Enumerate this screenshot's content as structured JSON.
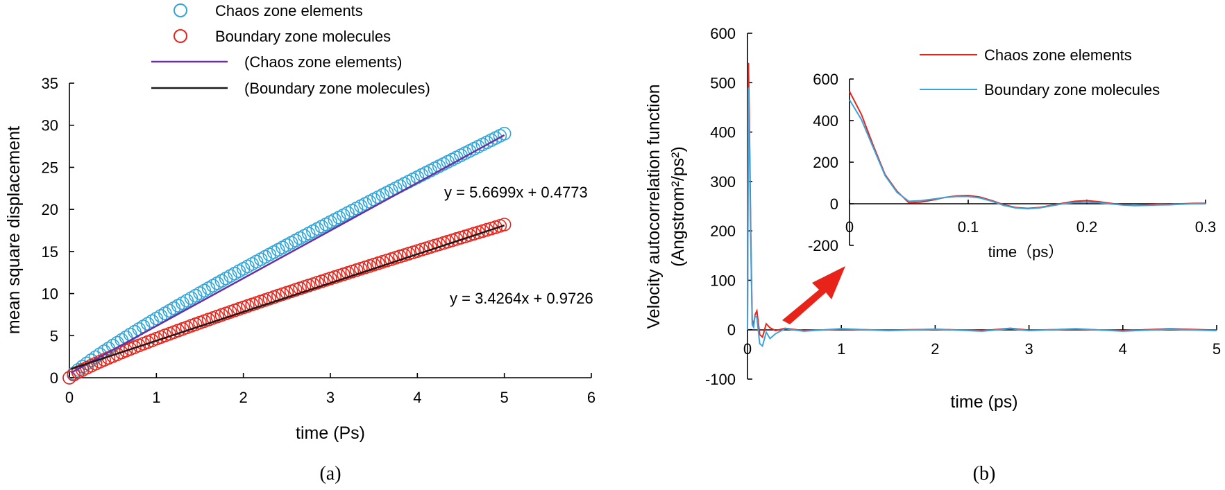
{
  "chart_data": [
    {
      "type": "scatter",
      "panel": "(a)",
      "xlabel": "time (Ps)",
      "ylabel": "mean square displacement",
      "xlim": [
        0,
        6
      ],
      "ylim": [
        0,
        35
      ],
      "xticks": [
        "0",
        "1",
        "2",
        "3",
        "4",
        "5",
        "6"
      ],
      "yticks": [
        "0",
        "5",
        "10",
        "15",
        "20",
        "25",
        "30",
        "35"
      ],
      "legend": {
        "placement": "top",
        "entries": [
          {
            "label": "Chaos zone elements",
            "marker": "circle",
            "color": "#2ea6d9"
          },
          {
            "label": "Boundary zone molecules",
            "marker": "circle",
            "color": "#e8231a"
          },
          {
            "label": "(Chaos zone elements)",
            "marker": "line",
            "color": "#6a2fa0"
          },
          {
            "label": "(Boundary zone molecules)",
            "marker": "line",
            "color": "#1a1a1a"
          }
        ]
      },
      "series": [
        {
          "name": "Chaos zone elements",
          "kind": "points",
          "color": "#2ea6d9",
          "x_start": 0,
          "x_end": 5,
          "x_step": 0.05,
          "y_end": 29.0,
          "curve_exponent": 0.88
        },
        {
          "name": "Boundary zone molecules",
          "kind": "points",
          "color": "#e8231a",
          "x_start": 0,
          "x_end": 5,
          "x_step": 0.05,
          "y_end": 18.2,
          "curve_exponent": 0.85
        },
        {
          "name": "(Chaos zone elements)",
          "kind": "fit",
          "color": "#6a2fa0",
          "slope": 5.6699,
          "intercept": 0.4773,
          "x_range": [
            0.02,
            5
          ]
        },
        {
          "name": "(Boundary zone molecules)",
          "kind": "fit",
          "color": "#1a1a1a",
          "slope": 3.4264,
          "intercept": 0.9726,
          "x_range": [
            0.02,
            5
          ]
        }
      ],
      "annotations": [
        "y = 5.6699x + 0.4773",
        "y = 3.4264x + 0.9726"
      ],
      "caption": "(a)"
    },
    {
      "type": "line",
      "panel": "(b)",
      "xlabel": "time (ps)",
      "ylabel_line1": "Velocity autocorrelation function",
      "ylabel_line2": "(Angstrom²/ps²)",
      "xlim": [
        0,
        5
      ],
      "ylim": [
        -100,
        600
      ],
      "xticks": [
        "0",
        "1",
        "2",
        "3",
        "4",
        "5"
      ],
      "yticks": [
        "-100",
        "0",
        "100",
        "200",
        "300",
        "400",
        "500",
        "600"
      ],
      "legend": {
        "placement": "top-right",
        "entries": [
          {
            "label": "Chaos zone elements",
            "color": "#e8231a"
          },
          {
            "label": "Boundary zone molecules",
            "color": "#3ba3dc"
          }
        ]
      },
      "series": [
        {
          "name": "Chaos zone elements",
          "color": "#e8231a",
          "points": [
            [
              0,
              0
            ],
            [
              0.01,
              540
            ],
            [
              0.02,
              420
            ],
            [
              0.035,
              200
            ],
            [
              0.05,
              20
            ],
            [
              0.065,
              10
            ],
            [
              0.08,
              30
            ],
            [
              0.1,
              38
            ],
            [
              0.13,
              -10
            ],
            [
              0.16,
              -15
            ],
            [
              0.2,
              12
            ],
            [
              0.24,
              4
            ],
            [
              0.3,
              -2
            ],
            [
              0.4,
              3
            ],
            [
              0.6,
              -2
            ],
            [
              1.0,
              1
            ],
            [
              1.5,
              -1
            ],
            [
              2.0,
              1
            ],
            [
              2.5,
              -2
            ],
            [
              2.8,
              3
            ],
            [
              3.0,
              -1
            ],
            [
              3.5,
              1
            ],
            [
              4.0,
              -2
            ],
            [
              4.5,
              2
            ],
            [
              5.0,
              -1
            ]
          ]
        },
        {
          "name": "Boundary zone molecules",
          "color": "#3ba3dc",
          "points": [
            [
              0,
              0
            ],
            [
              0.01,
              490
            ],
            [
              0.02,
              380
            ],
            [
              0.035,
              180
            ],
            [
              0.05,
              10
            ],
            [
              0.065,
              5
            ],
            [
              0.08,
              28
            ],
            [
              0.1,
              25
            ],
            [
              0.13,
              -28
            ],
            [
              0.16,
              -33
            ],
            [
              0.2,
              -5
            ],
            [
              0.24,
              -18
            ],
            [
              0.3,
              -8
            ],
            [
              0.4,
              2
            ],
            [
              0.6,
              -3
            ],
            [
              1.0,
              2
            ],
            [
              1.5,
              -2
            ],
            [
              2.0,
              1
            ],
            [
              2.5,
              -3
            ],
            [
              2.8,
              2
            ],
            [
              3.0,
              -2
            ],
            [
              3.5,
              2
            ],
            [
              4.0,
              -3
            ],
            [
              4.5,
              1
            ],
            [
              5.0,
              -2
            ]
          ]
        }
      ],
      "caption": "(b)"
    },
    {
      "type": "line",
      "panel": "(b) inset",
      "xlabel": "time（ps）",
      "xlim": [
        0,
        0.3
      ],
      "ylim": [
        -200,
        600
      ],
      "xticks": [
        "0",
        "0.1",
        "0.2",
        "0.3"
      ],
      "yticks": [
        "-200",
        "0",
        "200",
        "400",
        "600"
      ],
      "series": [
        {
          "name": "Chaos zone elements",
          "color": "#e8231a",
          "points": [
            [
              0,
              540
            ],
            [
              0.01,
              430
            ],
            [
              0.02,
              280
            ],
            [
              0.03,
              140
            ],
            [
              0.04,
              60
            ],
            [
              0.05,
              5
            ],
            [
              0.06,
              8
            ],
            [
              0.07,
              18
            ],
            [
              0.08,
              30
            ],
            [
              0.09,
              38
            ],
            [
              0.1,
              40
            ],
            [
              0.11,
              32
            ],
            [
              0.12,
              15
            ],
            [
              0.13,
              -5
            ],
            [
              0.14,
              -18
            ],
            [
              0.15,
              -22
            ],
            [
              0.16,
              -18
            ],
            [
              0.17,
              -8
            ],
            [
              0.18,
              3
            ],
            [
              0.19,
              12
            ],
            [
              0.2,
              15
            ],
            [
              0.21,
              10
            ],
            [
              0.22,
              2
            ],
            [
              0.23,
              -5
            ],
            [
              0.24,
              -8
            ],
            [
              0.25,
              -5
            ],
            [
              0.26,
              -2
            ],
            [
              0.27,
              -3
            ],
            [
              0.28,
              0
            ],
            [
              0.29,
              2
            ],
            [
              0.3,
              3
            ]
          ]
        },
        {
          "name": "Boundary zone molecules",
          "color": "#3ba3dc",
          "points": [
            [
              0,
              500
            ],
            [
              0.01,
              405
            ],
            [
              0.02,
              270
            ],
            [
              0.03,
              135
            ],
            [
              0.04,
              55
            ],
            [
              0.05,
              12
            ],
            [
              0.06,
              15
            ],
            [
              0.07,
              22
            ],
            [
              0.08,
              30
            ],
            [
              0.09,
              35
            ],
            [
              0.1,
              35
            ],
            [
              0.11,
              28
            ],
            [
              0.12,
              12
            ],
            [
              0.13,
              -8
            ],
            [
              0.14,
              -20
            ],
            [
              0.15,
              -24
            ],
            [
              0.16,
              -20
            ],
            [
              0.17,
              -10
            ],
            [
              0.18,
              0
            ],
            [
              0.19,
              6
            ],
            [
              0.2,
              8
            ],
            [
              0.21,
              5
            ],
            [
              0.22,
              -1
            ],
            [
              0.23,
              -6
            ],
            [
              0.24,
              -9
            ],
            [
              0.25,
              -8
            ],
            [
              0.26,
              -6
            ],
            [
              0.27,
              -5
            ],
            [
              0.28,
              -2
            ],
            [
              0.29,
              0
            ],
            [
              0.3,
              2
            ]
          ]
        }
      ]
    }
  ]
}
